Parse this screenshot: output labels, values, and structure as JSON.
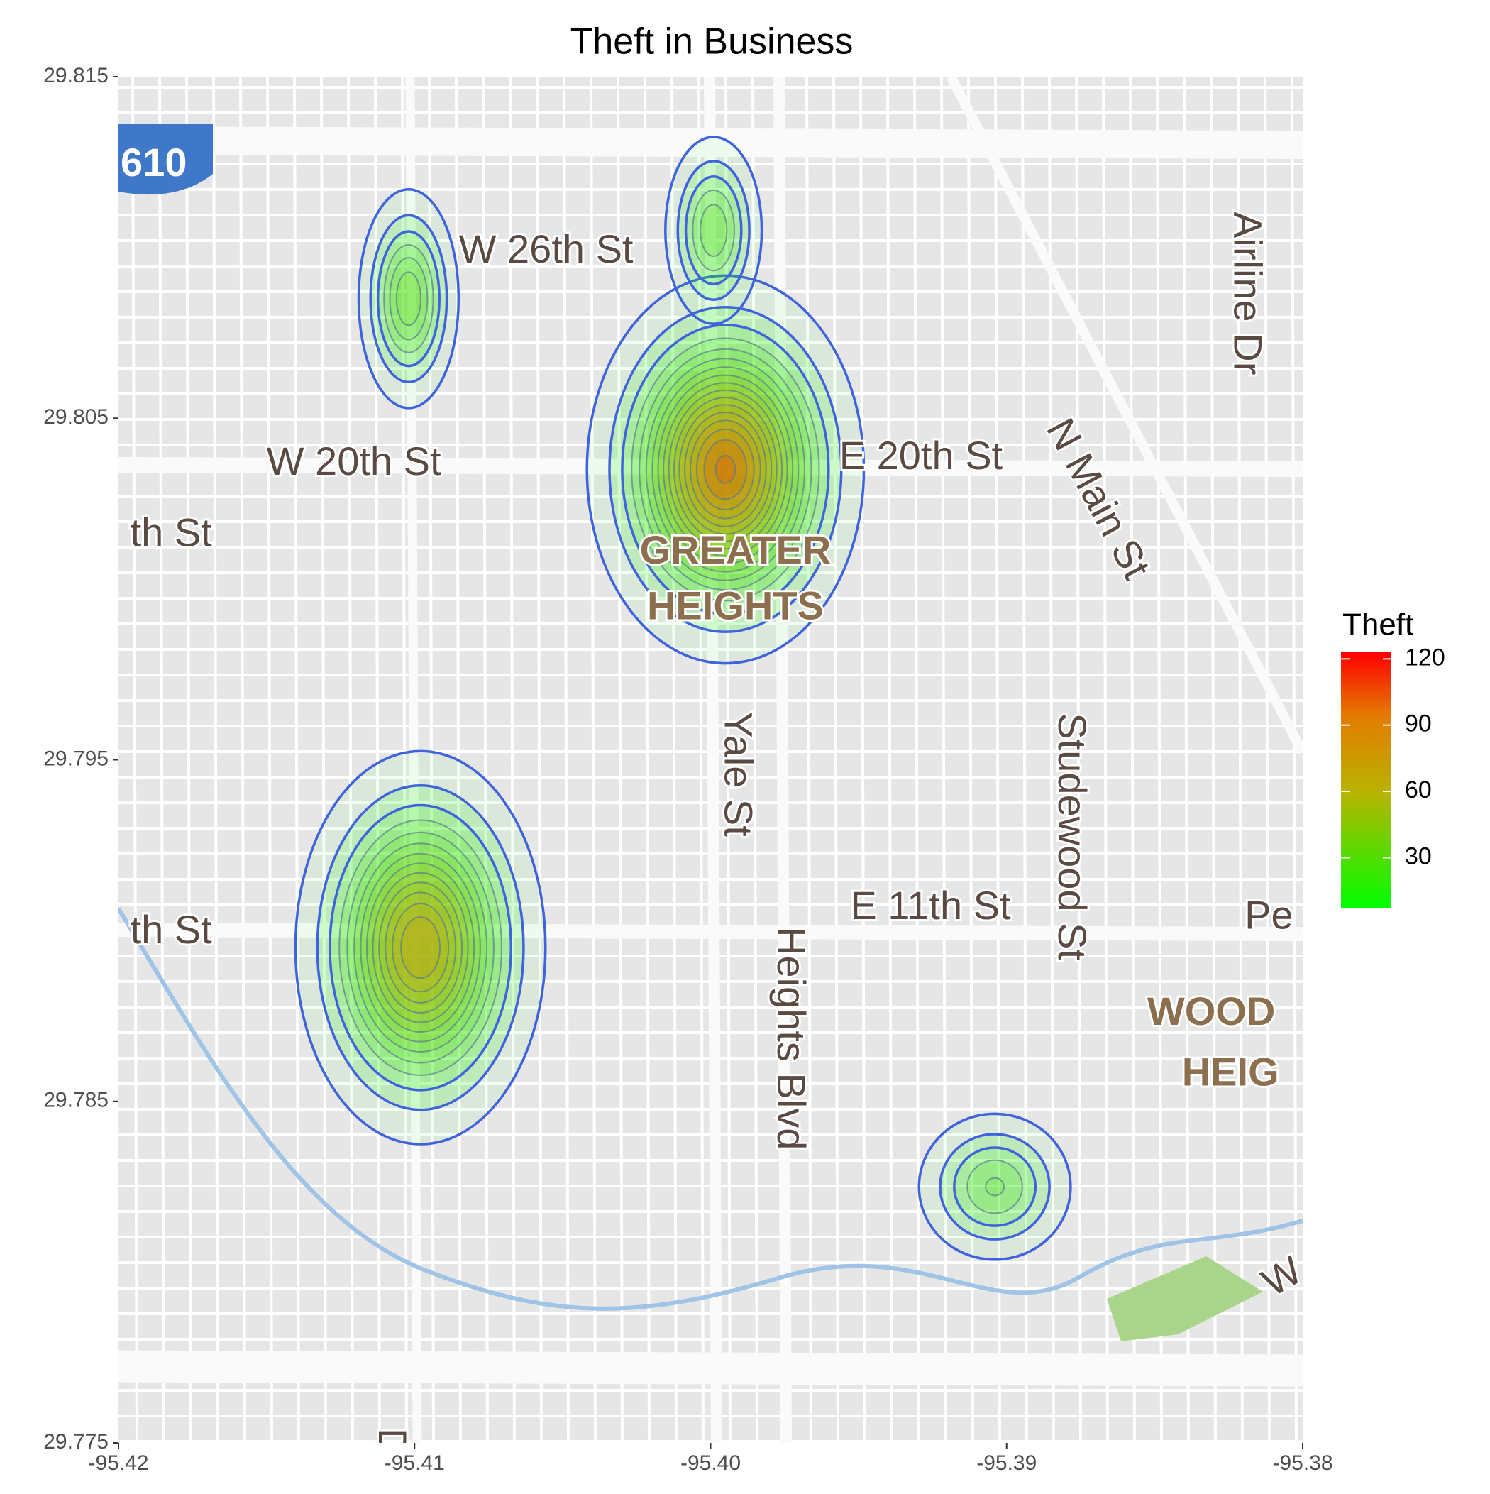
{
  "chart_data": {
    "type": "density_map",
    "title": "Theft in Business",
    "xlim": [
      -95.42,
      -95.38
    ],
    "ylim": [
      29.775,
      29.815
    ],
    "xticks": [
      -95.42,
      -95.41,
      {
        "value": -95.4,
        "label": "-95.40"
      },
      -95.39,
      -95.38
    ],
    "yticks": [
      29.815,
      29.805,
      29.795,
      29.785,
      29.775
    ],
    "hotspots": {
      "x": [
        -95.3995,
        -95.4098,
        -95.4102,
        -95.3999,
        -95.3904
      ],
      "y": [
        29.8035,
        29.7895,
        29.8085,
        29.8105,
        29.7825
      ],
      "values": [
        118,
        95,
        45,
        38,
        33
      ]
    },
    "legend": {
      "title": "Theft",
      "lim": [
        7,
        123
      ],
      "ticks": [
        30,
        60,
        90,
        120
      ]
    },
    "map_labels": [
      "610",
      "W 26th St",
      "W 20th St",
      "th St",
      "E 20th St",
      "GREATER",
      "HEIGHTS",
      "N Main St",
      "Airline Dr",
      "Yale St",
      "th St",
      "E 11th St",
      "Heights Blvd",
      "Studewood St",
      "Pe",
      "WOOD",
      "HEIG",
      "W",
      "D"
    ]
  }
}
